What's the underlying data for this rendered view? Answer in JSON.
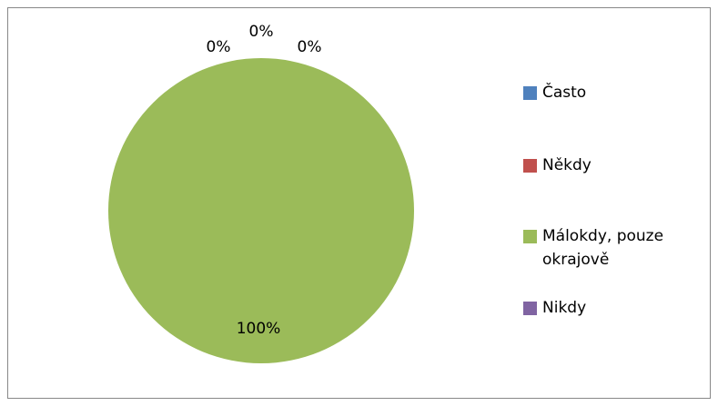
{
  "chart_data": {
    "type": "pie",
    "categories": [
      "Často",
      "Někdy",
      "Málokdy, pouze okrajově",
      "Nikdy"
    ],
    "values": [
      0,
      0,
      100,
      0
    ],
    "value_labels": [
      "0%",
      "0%",
      "100%",
      "0%"
    ],
    "colors": [
      "#4f81bd",
      "#c0504d",
      "#9bbb59",
      "#8064a2"
    ],
    "legend": "right"
  }
}
